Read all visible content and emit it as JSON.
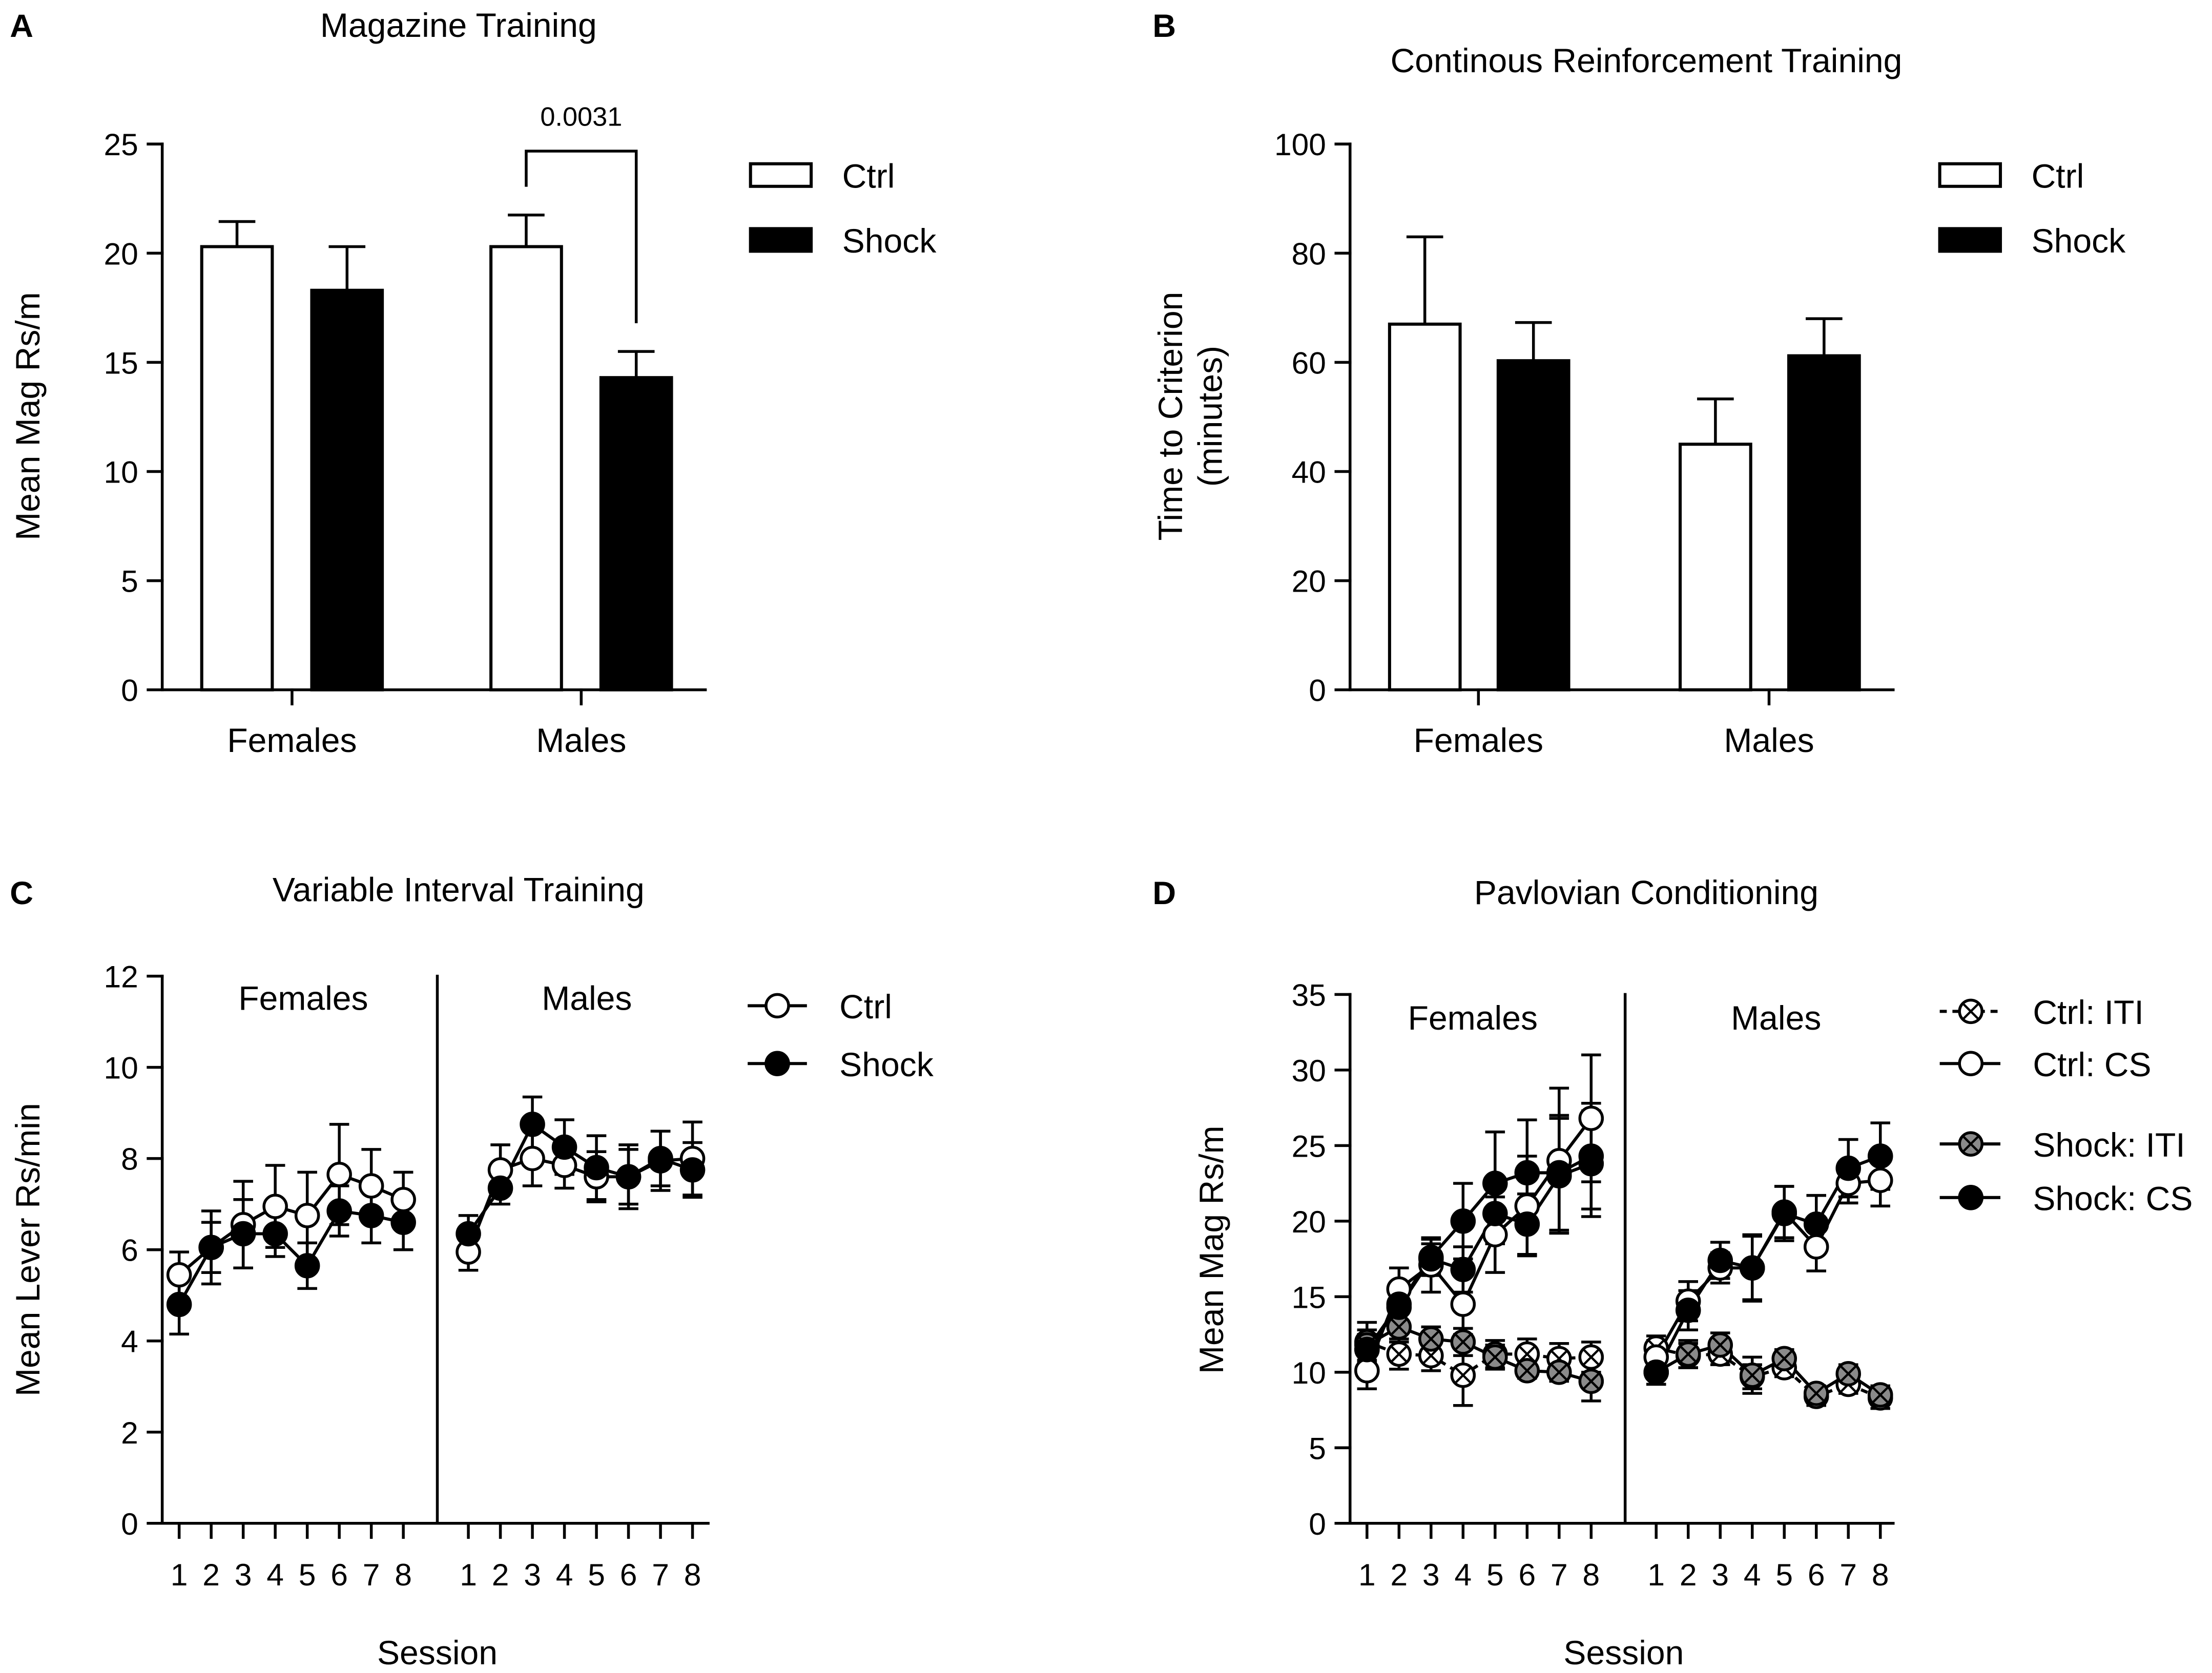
{
  "chart_data": [
    {
      "panel": "A",
      "type": "bar",
      "title": "Magazine Training",
      "ylabel": "Mean Mag Rs/m",
      "categories": [
        "Females",
        "Males"
      ],
      "ylim": [
        0,
        25
      ],
      "yticks": [
        0,
        5,
        10,
        15,
        20,
        25
      ],
      "series": [
        {
          "name": "Ctrl",
          "fill": "#ffffff",
          "values": [
            20.3,
            20.3
          ],
          "error": [
            1.15,
            1.45
          ]
        },
        {
          "name": "Shock",
          "fill": "#000000",
          "values": [
            18.3,
            14.3
          ],
          "error": [
            2.0,
            1.2
          ]
        }
      ],
      "significance": [
        {
          "label": "0.0031",
          "category": "Males",
          "pair": [
            "Ctrl",
            "Shock"
          ]
        }
      ]
    },
    {
      "panel": "B",
      "type": "bar",
      "title": "Continous Reinforcement Training",
      "ylabel": [
        "Time to Criterion",
        "(minutes)"
      ],
      "categories": [
        "Females",
        "Males"
      ],
      "ylim": [
        0,
        100
      ],
      "yticks": [
        0,
        20,
        40,
        60,
        80,
        100
      ],
      "series": [
        {
          "name": "Ctrl",
          "fill": "#ffffff",
          "values": [
            67.0,
            45.0
          ],
          "error": [
            16.0,
            8.3
          ]
        },
        {
          "name": "Shock",
          "fill": "#000000",
          "values": [
            60.3,
            61.2
          ],
          "error": [
            7.0,
            6.8
          ]
        }
      ]
    },
    {
      "panel": "C",
      "type": "line",
      "title": "Variable Interval Training",
      "ylabel": "Mean Lever Rs/min",
      "xlabel": "Session",
      "groups": [
        "Females",
        "Males"
      ],
      "x": [
        1,
        2,
        3,
        4,
        5,
        6,
        7,
        8
      ],
      "ylim": [
        0,
        12
      ],
      "yticks": [
        0,
        2,
        4,
        6,
        8,
        10,
        12
      ],
      "series": [
        {
          "name": "Ctrl",
          "marker": "open-circle",
          "dashed": false,
          "y": [
            [
              5.45,
              6.05,
              6.55,
              6.95,
              6.75,
              7.65,
              7.4,
              7.1
            ],
            [
              5.95,
              7.75,
              8.0,
              7.85,
              7.6,
              7.6,
              7.95,
              8.0
            ]
          ],
          "error": [
            [
              0.5,
              0.8,
              0.95,
              0.9,
              0.95,
              1.1,
              0.8,
              0.6
            ],
            [
              0.4,
              0.55,
              0.6,
              0.5,
              0.55,
              0.6,
              0.65,
              0.8
            ]
          ]
        },
        {
          "name": "Shock",
          "marker": "filled-circle",
          "dashed": false,
          "y": [
            [
              4.8,
              6.05,
              6.35,
              6.35,
              5.65,
              6.85,
              6.75,
              6.6
            ],
            [
              6.35,
              7.35,
              8.75,
              8.25,
              7.8,
              7.6,
              8.0,
              7.75
            ]
          ],
          "error": [
            [
              0.65,
              0.55,
              0.75,
              0.5,
              0.5,
              0.55,
              0.6,
              0.6
            ],
            [
              0.4,
              0.35,
              0.6,
              0.6,
              0.7,
              0.7,
              0.6,
              0.6
            ]
          ]
        }
      ]
    },
    {
      "panel": "D",
      "type": "line",
      "title": "Pavlovian Conditioning",
      "ylabel": "Mean Mag Rs/m",
      "xlabel": "Session",
      "groups": [
        "Females",
        "Males"
      ],
      "x": [
        1,
        2,
        3,
        4,
        5,
        6,
        7,
        8
      ],
      "ylim": [
        0,
        35
      ],
      "yticks": [
        0,
        5,
        10,
        15,
        20,
        25,
        30,
        35
      ],
      "colors": {
        "gray_marker": "#8a8a8a"
      },
      "series": [
        {
          "name": "Ctrl: ITI",
          "marker": "crossed-open-circle",
          "dashed": true,
          "y": [
            [
              12.0,
              11.2,
              11.1,
              9.8,
              11.2,
              11.2,
              10.9,
              11.0
            ],
            [
              11.6,
              11.1,
              11.2,
              9.7,
              10.3,
              8.4,
              9.2,
              8.3
            ]
          ],
          "error": [
            [
              1.3,
              1.0,
              1.0,
              2.0,
              0.9,
              1.0,
              1.0,
              1.0
            ],
            [
              0.8,
              0.8,
              0.7,
              0.8,
              0.6,
              0.6,
              0.6,
              0.7
            ]
          ]
        },
        {
          "name": "Ctrl: CS",
          "marker": "open-circle",
          "dashed": false,
          "y": [
            [
              10.1,
              15.5,
              17.1,
              14.5,
              19.1,
              21.0,
              24.0,
              26.8
            ],
            [
              11.0,
              14.7,
              16.9,
              16.9,
              20.6,
              18.3,
              22.5,
              22.7
            ]
          ],
          "error": [
            [
              1.2,
              1.4,
              1.8,
              2.0,
              2.5,
              3.3,
              4.8,
              4.2
            ],
            [
              1.1,
              1.3,
              1.0,
              2.2,
              1.7,
              1.6,
              1.3,
              1.7
            ]
          ]
        },
        {
          "name": "Shock: ITI",
          "marker": "crossed-gray-circle",
          "dashed": false,
          "y": [
            [
              11.8,
              13.0,
              12.2,
              12.0,
              11.0,
              10.1,
              10.0,
              9.4
            ],
            [
              10.0,
              11.2,
              11.8,
              9.8,
              10.9,
              8.6,
              9.9,
              8.5
            ]
          ],
          "error": [
            [
              1.0,
              1.0,
              0.8,
              0.9,
              0.8,
              0.5,
              0.6,
              1.3
            ],
            [
              0.8,
              0.9,
              0.8,
              1.2,
              0.6,
              0.5,
              0.6,
              0.6
            ]
          ]
        },
        {
          "name": "Shock: CS",
          "marker": "filled-circle",
          "dashed": false,
          "y": [
            [
              11.5,
              14.5,
              17.6,
              20.0,
              22.5,
              23.2,
              23.2,
              24.3
            ],
            [
              10.0,
              14.1,
              17.4,
              16.9,
              20.5,
              19.8,
              23.5,
              24.3
            ]
          ],
          "error": [
            [
              1.0,
              1.2,
              1.2,
              2.5,
              3.4,
              3.5,
              3.8,
              3.5
            ],
            [
              0.8,
              1.3,
              1.2,
              2.1,
              1.8,
              1.9,
              1.9,
              2.2
            ]
          ],
          "y_second_trace": [
            [
              11.5,
              14.3,
              17.5,
              16.8,
              20.5,
              19.8,
              23.0,
              23.8
            ],
            null
          ],
          "error_second_trace": [
            [
              1.0,
              1.0,
              1.0,
              1.5,
              2.0,
              2.0,
              3.8,
              3.5
            ],
            null
          ]
        }
      ]
    }
  ]
}
